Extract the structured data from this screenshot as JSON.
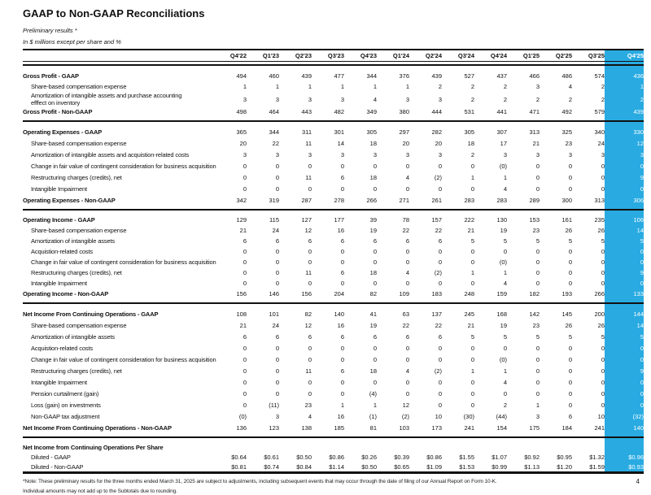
{
  "page": {
    "title": "GAAP to Non-GAAP Reconciliations",
    "subtitle_preliminary": "Preliminary results *",
    "subtitle_units": "In $ millions except per share and %",
    "footnote_note": "*Note: These preliminary results for the three months ended March 31, 2025  are subject to adjustments, including subsequent events that may occur through the date of filing of our Annual Report on Form 10-K.",
    "footnote_rounding": "Individual amounts may not add up to the Subtotals due to rounding.",
    "page_number": "4"
  },
  "colors": {
    "highlight": "#29ABE2",
    "highlight_text": "#FFFFFF",
    "rule": "#111111"
  },
  "table": {
    "columns": [
      "Q4'22",
      "Q1'23",
      "Q2'23",
      "Q3'23",
      "Q4'23",
      "Q1'24",
      "Q2'24",
      "Q3'24",
      "Q4'24",
      "Q1'25",
      "Q2'25",
      "Q3'25",
      "Q4'25"
    ],
    "highlight_column_index": 12,
    "sections": [
      {
        "name": "gross-profit",
        "rows": [
          {
            "label": "Gross Profit - GAAP",
            "bold": true,
            "indent": false,
            "values": [
              "494",
              "460",
              "439",
              "477",
              "344",
              "376",
              "439",
              "527",
              "437",
              "466",
              "486",
              "574",
              "436"
            ]
          },
          {
            "label": "Share-based compensation expense",
            "bold": false,
            "indent": true,
            "values": [
              "1",
              "1",
              "1",
              "1",
              "1",
              "1",
              "2",
              "2",
              "2",
              "3",
              "4",
              "2",
              "1"
            ]
          },
          {
            "label": "Amortization of intangible assets and purchase accounting efffect on inventory",
            "bold": false,
            "indent": true,
            "wrap": true,
            "values": [
              "3",
              "3",
              "3",
              "3",
              "4",
              "3",
              "3",
              "2",
              "2",
              "2",
              "2",
              "2",
              "2"
            ]
          },
          {
            "label": "Gross Profit - Non-GAAP",
            "bold": true,
            "indent": false,
            "values": [
              "498",
              "464",
              "443",
              "482",
              "349",
              "380",
              "444",
              "531",
              "441",
              "471",
              "492",
              "579",
              "439"
            ]
          }
        ]
      },
      {
        "name": "operating-expenses",
        "rows": [
          {
            "label": "Operating Expenses - GAAP",
            "bold": true,
            "indent": false,
            "values": [
              "365",
              "344",
              "311",
              "301",
              "305",
              "297",
              "282",
              "305",
              "307",
              "313",
              "325",
              "340",
              "330"
            ]
          },
          {
            "label": "Share-based compensation expense",
            "bold": false,
            "indent": true,
            "values": [
              "20",
              "22",
              "11",
              "14",
              "18",
              "20",
              "20",
              "18",
              "17",
              "21",
              "23",
              "24",
              "12"
            ]
          },
          {
            "label": "Amortization of intangible assets and acquistion-related costs",
            "bold": false,
            "indent": true,
            "values": [
              "3",
              "3",
              "3",
              "3",
              "3",
              "3",
              "3",
              "2",
              "3",
              "3",
              "3",
              "3",
              "3"
            ]
          },
          {
            "label": "Change in fair value of contingent consideration for business acquisition",
            "bold": false,
            "indent": true,
            "values": [
              "0",
              "0",
              "0",
              "0",
              "0",
              "0",
              "0",
              "0",
              "(0)",
              "0",
              "0",
              "0",
              "0"
            ]
          },
          {
            "label": "Restructuring charges (credits), net",
            "bold": false,
            "indent": true,
            "values": [
              "0",
              "0",
              "11",
              "6",
              "18",
              "4",
              "(2)",
              "1",
              "1",
              "0",
              "0",
              "0",
              "9"
            ]
          },
          {
            "label": "Intangible Impairment",
            "bold": false,
            "indent": true,
            "values": [
              "0",
              "0",
              "0",
              "0",
              "0",
              "0",
              "0",
              "0",
              "4",
              "0",
              "0",
              "0",
              "0"
            ]
          },
          {
            "label": "Operating Expenses - Non-GAAP",
            "bold": true,
            "indent": false,
            "values": [
              "342",
              "319",
              "287",
              "278",
              "266",
              "271",
              "261",
              "283",
              "283",
              "289",
              "300",
              "313",
              "306"
            ]
          }
        ]
      },
      {
        "name": "operating-income",
        "rows": [
          {
            "label": "Operating Income - GAAP",
            "bold": true,
            "indent": false,
            "values": [
              "129",
              "115",
              "127",
              "177",
              "39",
              "78",
              "157",
              "222",
              "130",
              "153",
              "161",
              "235",
              "106"
            ]
          },
          {
            "label": "Share-based compensation expense",
            "bold": false,
            "indent": true,
            "values": [
              "21",
              "24",
              "12",
              "16",
              "19",
              "22",
              "22",
              "21",
              "19",
              "23",
              "26",
              "26",
              "14"
            ]
          },
          {
            "label": "Amortization of intangible assets",
            "bold": false,
            "indent": true,
            "values": [
              "6",
              "6",
              "6",
              "6",
              "6",
              "6",
              "6",
              "5",
              "5",
              "5",
              "5",
              "5",
              "5"
            ]
          },
          {
            "label": "Acquistion-related costs",
            "bold": false,
            "indent": true,
            "values": [
              "0",
              "0",
              "0",
              "0",
              "0",
              "0",
              "0",
              "0",
              "0",
              "0",
              "0",
              "0",
              "0"
            ]
          },
          {
            "label": "Change in fair value of contingent consideration for business acquisition",
            "bold": false,
            "indent": true,
            "values": [
              "0",
              "0",
              "0",
              "0",
              "0",
              "0",
              "0",
              "0",
              "(0)",
              "0",
              "0",
              "0",
              "0"
            ]
          },
          {
            "label": "Restructuring charges (credits), net",
            "bold": false,
            "indent": true,
            "values": [
              "0",
              "0",
              "11",
              "6",
              "18",
              "4",
              "(2)",
              "1",
              "1",
              "0",
              "0",
              "0",
              "9"
            ]
          },
          {
            "label": "Intangible Impairment",
            "bold": false,
            "indent": true,
            "values": [
              "0",
              "0",
              "0",
              "0",
              "0",
              "0",
              "0",
              "0",
              "4",
              "0",
              "0",
              "0",
              "0"
            ]
          },
          {
            "label": "Operating Income - Non-GAAP",
            "bold": true,
            "indent": false,
            "values": [
              "156",
              "146",
              "156",
              "204",
              "82",
              "109",
              "183",
              "248",
              "159",
              "182",
              "193",
              "266",
              "133"
            ]
          }
        ]
      },
      {
        "name": "net-income-continuing-operations",
        "rows": [
          {
            "label": "Net Income From Continuing Operations - GAAP",
            "bold": true,
            "indent": false,
            "values": [
              "108",
              "101",
              "82",
              "140",
              "41",
              "63",
              "137",
              "245",
              "168",
              "142",
              "145",
              "200",
              "144"
            ]
          },
          {
            "label": "Share-based compensation expense",
            "bold": false,
            "indent": true,
            "values": [
              "21",
              "24",
              "12",
              "16",
              "19",
              "22",
              "22",
              "21",
              "19",
              "23",
              "26",
              "26",
              "14"
            ]
          },
          {
            "label": "Amortization of intangible assets",
            "bold": false,
            "indent": true,
            "values": [
              "6",
              "6",
              "6",
              "6",
              "6",
              "6",
              "6",
              "5",
              "5",
              "5",
              "5",
              "5",
              "5"
            ]
          },
          {
            "label": "Acquistion-related costs",
            "bold": false,
            "indent": true,
            "values": [
              "0",
              "0",
              "0",
              "0",
              "0",
              "0",
              "0",
              "0",
              "0",
              "0",
              "0",
              "0",
              "0"
            ]
          },
          {
            "label": "Change in fair value of contingent consideration for business acquisition",
            "bold": false,
            "indent": true,
            "values": [
              "0",
              "0",
              "0",
              "0",
              "0",
              "0",
              "0",
              "0",
              "(0)",
              "0",
              "0",
              "0",
              "0"
            ]
          },
          {
            "label": "Restructuring charges (credits), net",
            "bold": false,
            "indent": true,
            "values": [
              "0",
              "0",
              "11",
              "6",
              "18",
              "4",
              "(2)",
              "1",
              "1",
              "0",
              "0",
              "0",
              "9"
            ]
          },
          {
            "label": "Intangible Impairment",
            "bold": false,
            "indent": true,
            "values": [
              "0",
              "0",
              "0",
              "0",
              "0",
              "0",
              "0",
              "0",
              "4",
              "0",
              "0",
              "0",
              "0"
            ]
          },
          {
            "label": "Pension curtailment (gain)",
            "bold": false,
            "indent": true,
            "values": [
              "0",
              "0",
              "0",
              "0",
              "(4)",
              "0",
              "0",
              "0",
              "0",
              "0",
              "0",
              "0",
              "0"
            ]
          },
          {
            "label": "Loss (gain) on investments",
            "bold": false,
            "indent": true,
            "values": [
              "0",
              "(11)",
              "23",
              "1",
              "1",
              "12",
              "0",
              "0",
              "2",
              "1",
              "0",
              "0",
              "0"
            ]
          },
          {
            "label": "Non-GAAP tax adjustment",
            "bold": false,
            "indent": true,
            "values": [
              "(0)",
              "3",
              "4",
              "16",
              "(1)",
              "(2)",
              "10",
              "(30)",
              "(44)",
              "3",
              "6",
              "10",
              "(32)"
            ]
          },
          {
            "label": "Net Income From Continuing Operations - Non-GAAP",
            "bold": true,
            "indent": false,
            "values": [
              "136",
              "123",
              "138",
              "185",
              "81",
              "103",
              "173",
              "241",
              "154",
              "175",
              "184",
              "241",
              "140"
            ]
          }
        ]
      },
      {
        "name": "per-share",
        "rows": [
          {
            "label": "Net Income from Continuing Operations Per Share",
            "bold": true,
            "indent": false,
            "values": []
          },
          {
            "label": "Diluted - GAAP",
            "bold": false,
            "indent": true,
            "values": [
              "$0.64",
              "$0.61",
              "$0.50",
              "$0.86",
              "$0.26",
              "$0.39",
              "$0.86",
              "$1.55",
              "$1.07",
              "$0.92",
              "$0.95",
              "$1.32",
              "$0.96"
            ]
          },
          {
            "label": "Diluted - Non-GAAP",
            "bold": false,
            "indent": true,
            "values": [
              "$0.81",
              "$0.74",
              "$0.84",
              "$1.14",
              "$0.50",
              "$0.65",
              "$1.09",
              "$1.53",
              "$0.99",
              "$1.13",
              "$1.20",
              "$1.59",
              "$0.93"
            ]
          }
        ]
      }
    ]
  }
}
